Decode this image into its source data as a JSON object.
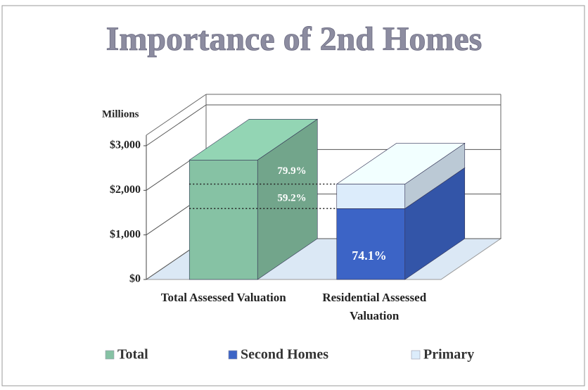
{
  "chart_data": {
    "type": "bar3d-stacked",
    "title": "Importance of 2nd Homes",
    "y_label": "Millions",
    "categories": [
      "Total Assessed Valuation",
      "Residential Assessed Valuation"
    ],
    "series": [
      {
        "name": "Total",
        "color": "#86c2a4",
        "values": [
          2680,
          null
        ]
      },
      {
        "name": "Second Homes",
        "color": "#3c64c6",
        "values": [
          null,
          1590
        ]
      },
      {
        "name": "Primary",
        "color": "#dcecfb",
        "values": [
          null,
          550
        ]
      }
    ],
    "annotations": [
      "79.9%",
      "59.2%",
      "74.1%"
    ],
    "ylim": [
      0,
      3000
    ],
    "yticks": [
      {
        "value": 0,
        "label": "$0"
      },
      {
        "value": 1000,
        "label": "$1,000"
      },
      {
        "value": 2000,
        "label": "$2,000"
      },
      {
        "value": 3000,
        "label": "$3,000"
      }
    ],
    "grid": true
  }
}
